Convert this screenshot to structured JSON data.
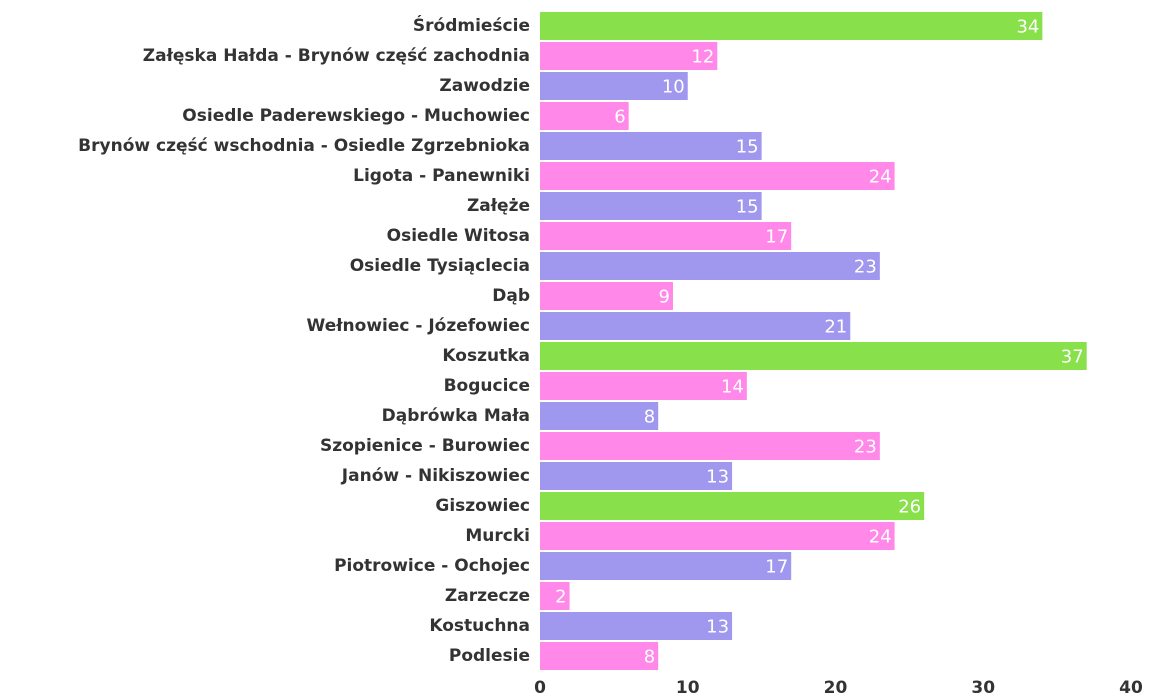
{
  "chart_data": {
    "type": "bar",
    "orientation": "horizontal",
    "categories": [
      "Śródmieście",
      "Załęska Hałda - Brynów część zachodnia",
      "Zawodzie",
      "Osiedle Paderewskiego - Muchowiec",
      "Brynów część wschodnia - Osiedle Zgrzebnioka",
      "Ligota - Panewniki",
      "Załęże",
      "Osiedle Witosa",
      "Osiedle Tysiąclecia",
      "Dąb",
      "Wełnowiec - Józefowiec",
      "Koszutka",
      "Bogucice",
      "Dąbrówka Mała",
      "Szopienice - Burowiec",
      "Janów - Nikiszowiec",
      "Giszowiec",
      "Murcki",
      "Piotrowice - Ochojec",
      "Zarzecze",
      "Kostuchna",
      "Podlesie"
    ],
    "values": [
      34,
      12,
      10,
      6,
      15,
      24,
      15,
      17,
      23,
      9,
      21,
      37,
      14,
      8,
      23,
      13,
      26,
      24,
      17,
      2,
      13,
      8
    ],
    "colors": [
      "#88e04a",
      "#ff88e8",
      "#a097ee",
      "#ff88e8",
      "#a097ee",
      "#ff88e8",
      "#a097ee",
      "#ff88e8",
      "#a097ee",
      "#ff88e8",
      "#a097ee",
      "#88e04a",
      "#ff88e8",
      "#a097ee",
      "#ff88e8",
      "#a097ee",
      "#88e04a",
      "#ff88e8",
      "#a097ee",
      "#ff88e8",
      "#a097ee",
      "#ff88e8"
    ],
    "xlim": [
      0,
      40
    ],
    "xticks": [
      0,
      10,
      20,
      30,
      40
    ],
    "grid": false
  }
}
